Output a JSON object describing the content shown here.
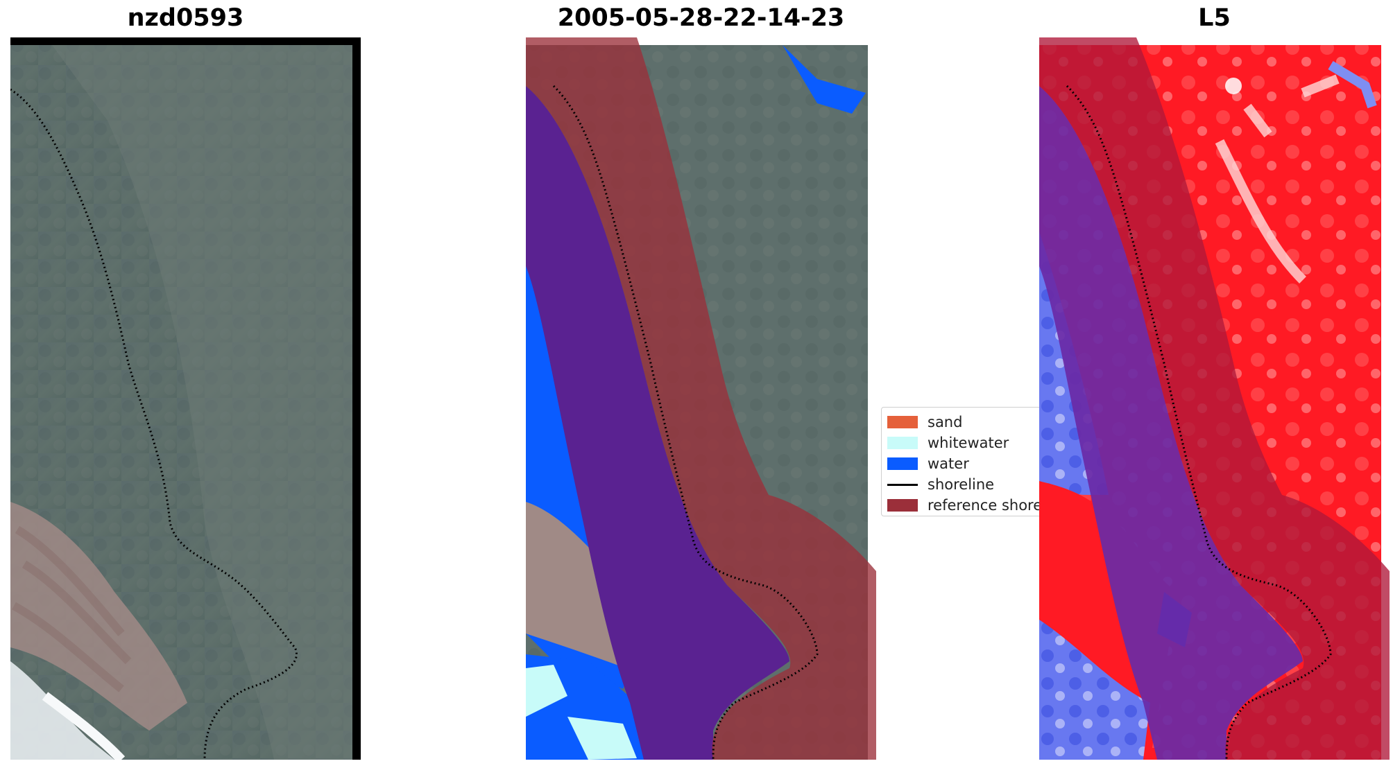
{
  "panels": [
    {
      "title": "nzd0593"
    },
    {
      "title": "2005-05-28-22-14-23"
    },
    {
      "title": "L5"
    }
  ],
  "legend": {
    "items": [
      {
        "label": "sand",
        "color": "#e5603a"
      },
      {
        "label": "whitewater",
        "color": "#c8fbf9"
      },
      {
        "label": "water",
        "color": "#0a5cff"
      },
      {
        "label": "shoreline",
        "color": "#000000"
      },
      {
        "label": "reference shore",
        "color": "#9b2f3a"
      }
    ]
  },
  "colors": {
    "imagery_base": "#5e6f6e",
    "reference_shoreline_band": "#9b2f3a",
    "index_positive": "#ff1a24",
    "index_negative": "#3a4fe0"
  }
}
